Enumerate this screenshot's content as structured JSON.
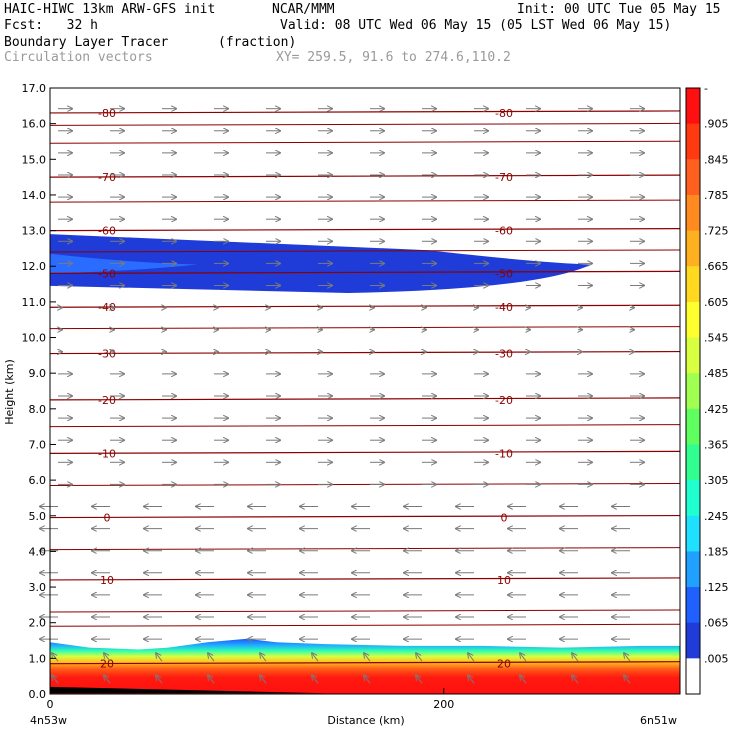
{
  "header": {
    "model": "HAIC-HIWC 13km ARW-GFS init",
    "org": "NCAR/MMM",
    "init": "Init: 00 UTC Tue 05 May 15",
    "fcst": "Fcst:   32 h",
    "valid": "Valid: 08 UTC Wed 06 May 15 (05 LST Wed 06 May 15)",
    "field1": "Boundary Layer Tracer",
    "field1_units": "(fraction)",
    "field2": "Circulation vectors",
    "xy": "XY= 259.5, 91.6 to 274.6,110.2"
  },
  "chart_data": {
    "type": "heatmap",
    "title": "Boundary Layer Tracer (fraction)",
    "xlabel": "Distance (km)",
    "ylabel": "Height (km)",
    "xlim": [
      0,
      320
    ],
    "ylim": [
      0,
      17
    ],
    "x_ticks": [
      0,
      200
    ],
    "x_tick_labels": [
      "0",
      "200"
    ],
    "x_end_labels": [
      "4n53w",
      "6n51w"
    ],
    "y_ticks": [
      "0.0",
      "1.0",
      "2.0",
      "3.0",
      "4.0",
      "5.0",
      "6.0",
      "7.0",
      "8.0",
      "9.0",
      "10.0",
      "11.0",
      "12.0",
      "13.0",
      "14.0",
      "15.0",
      "16.0",
      "17.0"
    ],
    "colorbar_labels": [
      "-",
      ".905",
      ".845",
      ".785",
      ".725",
      ".665",
      ".605",
      ".545",
      ".485",
      ".425",
      ".365",
      ".305",
      ".245",
      ".185",
      ".125",
      ".065",
      ".005"
    ],
    "colorbar_colors": [
      "#ff1010",
      "#ff3a10",
      "#ff6020",
      "#ff8a20",
      "#ffb020",
      "#ffd820",
      "#ffff30",
      "#d8ff40",
      "#a0ff50",
      "#60ff60",
      "#30ff90",
      "#20ffd0",
      "#20e0ff",
      "#20a0ff",
      "#2060ff",
      "#1f3cd8",
      "#ffffff"
    ],
    "isotherms": [
      {
        "label": "20",
        "height": 0.85
      },
      {
        "label": "10",
        "height": 3.2
      },
      {
        "label": "0",
        "height": 4.95
      },
      {
        "label": "-10",
        "height": 6.75
      },
      {
        "label": "-20",
        "height": 8.25
      },
      {
        "label": "-30",
        "height": 9.55
      },
      {
        "label": "-40",
        "height": 10.85
      },
      {
        "label": "-50",
        "height": 11.8
      },
      {
        "label": "-60",
        "height": 13.0
      },
      {
        "label": "-70",
        "height": 14.5
      },
      {
        "label": "-80",
        "height": 16.3
      }
    ],
    "tracer_upper_layer": {
      "x_start": 0,
      "x_end": 275,
      "z_top": 12.9,
      "z_bottom": 11.3,
      "value_band": ".005-.065"
    },
    "tracer_boundary_layer": {
      "x_start": 0,
      "x_end": 320,
      "z_top": 1.3,
      "z_bottom": 0.0,
      "value_max": ".905+"
    }
  }
}
